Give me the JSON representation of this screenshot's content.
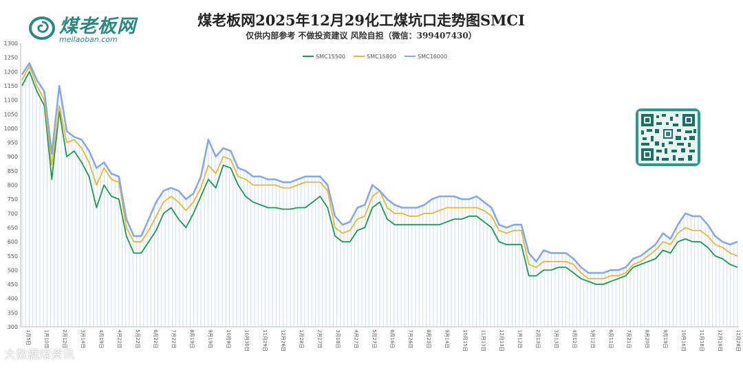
{
  "header": {
    "brand_cn": "煤老板网",
    "brand_url": "meilaoban.com",
    "title": "煤老板网2025年12月29化工煤坑口走势图SMCI",
    "subtitle": "仅供内部参考 不做投资建议 风险自担（微信：399407430）"
  },
  "watermark": "大数据煤资讯",
  "colors": {
    "s5500": "#1a9a50",
    "s5800": "#e8b830",
    "s6000": "#88a8e8",
    "brand": "#2a8a82"
  },
  "chart_data": {
    "type": "line",
    "title": "煤老板网2025年12月29化工煤坑口走势图SMCI",
    "ylim": [
      300,
      1300
    ],
    "yticks": [
      300,
      350,
      400,
      450,
      500,
      550,
      600,
      650,
      700,
      750,
      800,
      850,
      900,
      950,
      1000,
      1050,
      1100,
      1150,
      1200,
      1250,
      1300
    ],
    "x_tick_labels": [
      "1月5日",
      "1月10日",
      "2月12日",
      "3月14日",
      "4月19日",
      "4月22日",
      "5月22日",
      "6月22日",
      "7月22日",
      "8月19日",
      "9月19日",
      "10月9日",
      "10月30日",
      "11月29日",
      "12月26日",
      "1月28日",
      "2月27日",
      "3月18日",
      "4月27日",
      "5月27日",
      "6月16日",
      "7月26日",
      "8月23日",
      "9月14日",
      "10月15日",
      "11月13日",
      "12月13日",
      "1月12日",
      "2月13日",
      "3月13日",
      "4月12日",
      "5月12日",
      "6月11日",
      "7月21日",
      "8月20日",
      "9月19日",
      "10月16日",
      "11月18日",
      "12月18日",
      "12月28日"
    ],
    "legend_position": "top-center",
    "grid": false,
    "series": [
      {
        "name": "SMC15500",
        "color": "#1a9a50",
        "values": [
          1150,
          1200,
          1130,
          1080,
          820,
          1060,
          900,
          920,
          880,
          830,
          720,
          800,
          760,
          750,
          620,
          560,
          560,
          600,
          640,
          700,
          720,
          680,
          650,
          700,
          760,
          820,
          790,
          870,
          860,
          800,
          760,
          740,
          730,
          720,
          720,
          715,
          715,
          720,
          720,
          740,
          760,
          720,
          620,
          600,
          600,
          640,
          650,
          720,
          740,
          680,
          660,
          660,
          660,
          660,
          660,
          660,
          660,
          670,
          680,
          680,
          690,
          690,
          670,
          650,
          600,
          590,
          590,
          590,
          480,
          480,
          500,
          500,
          510,
          510,
          490,
          470,
          460,
          450,
          450,
          460,
          470,
          480,
          510,
          520,
          530,
          540,
          570,
          560,
          600,
          610,
          600,
          600,
          580,
          550,
          540,
          520,
          510
        ]
      },
      {
        "name": "SMC15800",
        "color": "#e8b830",
        "values": [
          1170,
          1220,
          1150,
          1100,
          870,
          1080,
          950,
          960,
          930,
          880,
          800,
          860,
          820,
          810,
          650,
          600,
          600,
          640,
          690,
          740,
          760,
          740,
          710,
          740,
          790,
          870,
          840,
          900,
          890,
          830,
          820,
          800,
          800,
          800,
          800,
          790,
          790,
          800,
          810,
          810,
          810,
          780,
          650,
          630,
          640,
          680,
          690,
          760,
          780,
          720,
          700,
          700,
          690,
          690,
          700,
          700,
          710,
          720,
          720,
          720,
          720,
          720,
          710,
          690,
          640,
          630,
          640,
          640,
          520,
          510,
          530,
          530,
          530,
          530,
          520,
          490,
          470,
          470,
          470,
          480,
          480,
          490,
          520,
          530,
          550,
          570,
          600,
          590,
          630,
          650,
          640,
          640,
          620,
          590,
          580,
          560,
          550
        ]
      },
      {
        "name": "SMC16000",
        "color": "#88a8e8",
        "values": [
          1190,
          1230,
          1170,
          1130,
          910,
          1150,
          990,
          970,
          960,
          920,
          860,
          880,
          840,
          830,
          680,
          620,
          620,
          680,
          740,
          780,
          790,
          780,
          750,
          770,
          830,
          960,
          900,
          930,
          920,
          860,
          850,
          830,
          830,
          820,
          820,
          810,
          810,
          820,
          830,
          830,
          830,
          800,
          690,
          660,
          670,
          720,
          730,
          800,
          780,
          750,
          730,
          720,
          720,
          720,
          730,
          750,
          760,
          760,
          760,
          750,
          750,
          760,
          740,
          720,
          660,
          650,
          660,
          660,
          560,
          530,
          570,
          560,
          560,
          560,
          540,
          510,
          490,
          490,
          490,
          500,
          500,
          510,
          540,
          550,
          570,
          590,
          630,
          610,
          660,
          700,
          690,
          690,
          660,
          620,
          600,
          590,
          600
        ]
      }
    ]
  }
}
